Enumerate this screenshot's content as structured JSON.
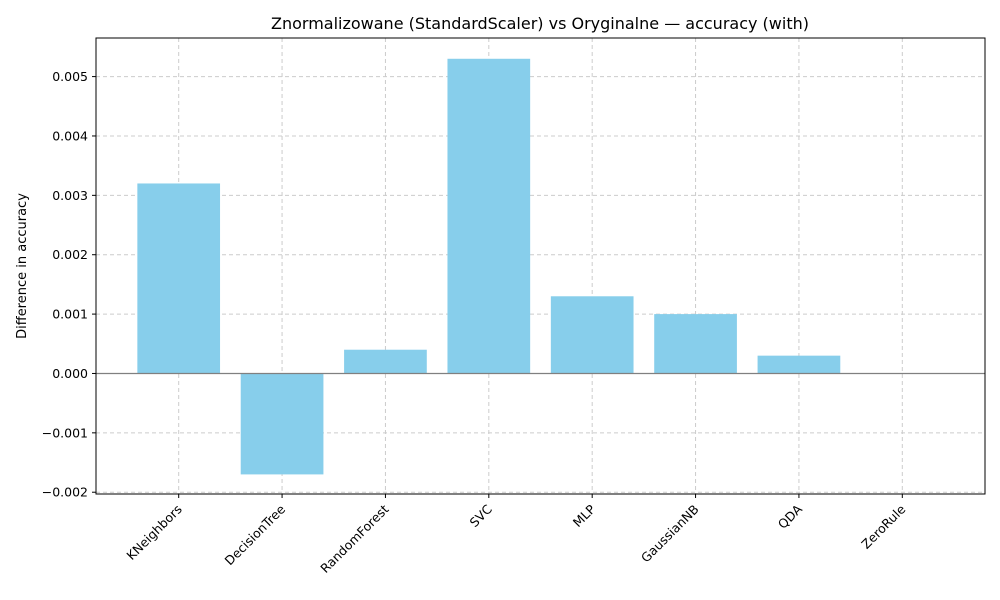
{
  "chart_data": {
    "type": "bar",
    "title": "Znormalizowane (StandardScaler) vs Oryginalne — accuracy (with)",
    "xlabel": "",
    "ylabel": "Difference in accuracy",
    "categories": [
      "KNeighbors",
      "DecisionTree",
      "RandomForest",
      "SVC",
      "MLP",
      "GaussianNB",
      "QDA",
      "ZeroRule"
    ],
    "values": [
      0.0032,
      -0.0017,
      0.0004,
      0.0053,
      0.0013,
      0.001,
      0.0003,
      0.0
    ],
    "ylim": [
      -0.00203,
      0.00565
    ],
    "yticks": [
      -0.002,
      -0.001,
      0.0,
      0.001,
      0.002,
      0.003,
      0.004,
      0.005
    ],
    "ytick_labels": [
      "−0.002",
      "−0.001",
      "0.000",
      "0.001",
      "0.002",
      "0.003",
      "0.004",
      "0.005"
    ],
    "grid": true,
    "zero_line": true,
    "colors": {
      "bar": "#87ceeb",
      "grid": "#cccccc",
      "zero_line": "#808080",
      "axis": "#000000"
    }
  }
}
